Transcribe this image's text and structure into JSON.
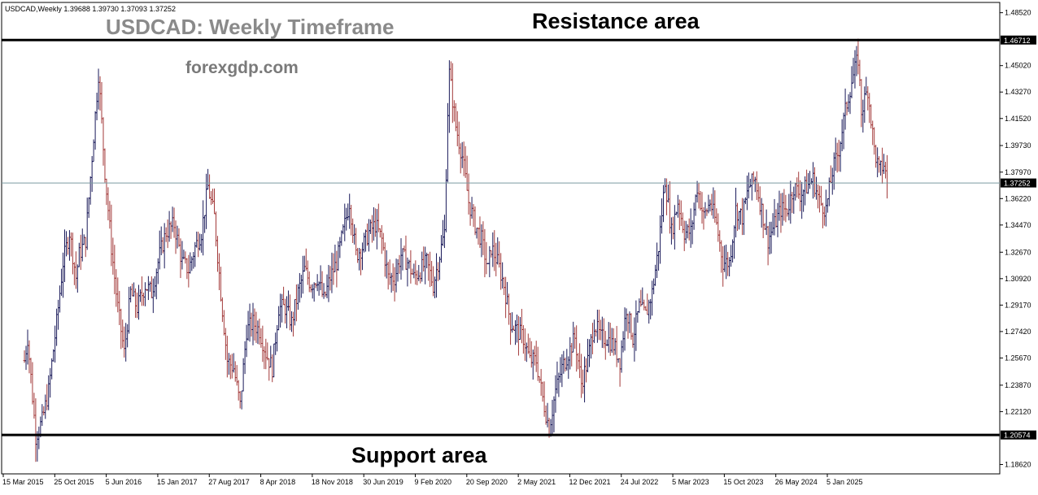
{
  "chart_data": {
    "type": "ohlc",
    "symbol_line": "USDCAD,Weekly  1.39688 1.39730 1.37093 1.37252",
    "title": "USDCAD: Weekly Timeframe",
    "watermark": "forexgdp.com",
    "annotations": {
      "resistance": "Resistance area",
      "support": "Support area"
    },
    "levels": {
      "resistance": {
        "value": 1.46712,
        "label": "1.46712"
      },
      "support": {
        "value": 1.20574,
        "label": "1.20574"
      },
      "current": {
        "value": 1.37252,
        "label": "1.37252"
      }
    },
    "ylim": [
      1.18,
      1.492
    ],
    "y_ticks": [
      {
        "value": 1.4852,
        "label": "1.48520"
      },
      {
        "value": 1.4502,
        "label": "1.45020"
      },
      {
        "value": 1.4327,
        "label": "1.43270"
      },
      {
        "value": 1.4152,
        "label": "1.41520"
      },
      {
        "value": 1.3973,
        "label": "1.39730"
      },
      {
        "value": 1.3797,
        "label": "1.37970"
      },
      {
        "value": 1.3622,
        "label": "1.36220"
      },
      {
        "value": 1.3447,
        "label": "1.34470"
      },
      {
        "value": 1.3267,
        "label": "1.32670"
      },
      {
        "value": 1.3092,
        "label": "1.30920"
      },
      {
        "value": 1.2917,
        "label": "1.29170"
      },
      {
        "value": 1.2742,
        "label": "1.27420"
      },
      {
        "value": 1.2567,
        "label": "1.25670"
      },
      {
        "value": 1.2387,
        "label": "1.23870"
      },
      {
        "value": 1.2212,
        "label": "1.22120"
      },
      {
        "value": 1.1862,
        "label": "1.18620"
      }
    ],
    "x_ticks": [
      {
        "date": "2015-03-15",
        "label": "15 Mar 2015"
      },
      {
        "date": "2015-10-25",
        "label": "25 Oct 2015"
      },
      {
        "date": "2016-06-05",
        "label": "5 Jun 2016"
      },
      {
        "date": "2017-01-15",
        "label": "15 Jan 2017"
      },
      {
        "date": "2017-08-27",
        "label": "27 Aug 2017"
      },
      {
        "date": "2018-04-08",
        "label": "8 Apr 2018"
      },
      {
        "date": "2018-11-18",
        "label": "18 Nov 2018"
      },
      {
        "date": "2019-06-30",
        "label": "30 Jun 2019"
      },
      {
        "date": "2020-02-09",
        "label": "9 Feb 2020"
      },
      {
        "date": "2020-09-20",
        "label": "20 Sep 2020"
      },
      {
        "date": "2021-05-02",
        "label": "2 May 2021"
      },
      {
        "date": "2021-12-12",
        "label": "12 Dec 2021"
      },
      {
        "date": "2022-07-24",
        "label": "24 Jul 2022"
      },
      {
        "date": "2023-03-05",
        "label": "5 Mar 2023"
      },
      {
        "date": "2023-10-15",
        "label": "15 Oct 2023"
      },
      {
        "date": "2024-05-26",
        "label": "26 May 2024"
      },
      {
        "date": "2025-01-05",
        "label": "5 Jan 2025"
      }
    ],
    "price_path": [
      [
        "2015-03-01",
        1.255
      ],
      [
        "2015-03-15",
        1.27
      ],
      [
        "2015-04-19",
        1.205
      ],
      [
        "2015-05-17",
        1.215
      ],
      [
        "2015-06-14",
        1.235
      ],
      [
        "2015-07-19",
        1.28
      ],
      [
        "2015-08-16",
        1.32
      ],
      [
        "2015-09-13",
        1.34
      ],
      [
        "2015-10-11",
        1.31
      ],
      [
        "2015-10-25",
        1.325
      ],
      [
        "2015-11-22",
        1.335
      ],
      [
        "2015-12-20",
        1.39
      ],
      [
        "2016-01-17",
        1.445
      ],
      [
        "2016-02-14",
        1.38
      ],
      [
        "2016-03-13",
        1.33
      ],
      [
        "2016-04-10",
        1.29
      ],
      [
        "2016-05-08",
        1.26
      ],
      [
        "2016-06-05",
        1.3
      ],
      [
        "2016-07-03",
        1.29
      ],
      [
        "2016-08-07",
        1.305
      ],
      [
        "2016-09-04",
        1.3
      ],
      [
        "2016-10-09",
        1.325
      ],
      [
        "2016-11-06",
        1.34
      ],
      [
        "2016-12-11",
        1.345
      ],
      [
        "2017-01-15",
        1.32
      ],
      [
        "2017-02-12",
        1.315
      ],
      [
        "2017-03-12",
        1.33
      ],
      [
        "2017-04-09",
        1.34
      ],
      [
        "2017-05-07",
        1.37
      ],
      [
        "2017-06-04",
        1.35
      ],
      [
        "2017-07-02",
        1.3
      ],
      [
        "2017-07-30",
        1.255
      ],
      [
        "2017-08-27",
        1.25
      ],
      [
        "2017-09-24",
        1.225
      ],
      [
        "2017-10-22",
        1.275
      ],
      [
        "2017-11-19",
        1.28
      ],
      [
        "2017-12-17",
        1.275
      ],
      [
        "2018-01-14",
        1.26
      ],
      [
        "2018-02-11",
        1.25
      ],
      [
        "2018-03-11",
        1.29
      ],
      [
        "2018-04-08",
        1.29
      ],
      [
        "2018-05-06",
        1.28
      ],
      [
        "2018-06-03",
        1.3
      ],
      [
        "2018-07-01",
        1.315
      ],
      [
        "2018-07-29",
        1.305
      ],
      [
        "2018-08-26",
        1.31
      ],
      [
        "2018-09-23",
        1.295
      ],
      [
        "2018-10-21",
        1.31
      ],
      [
        "2018-11-18",
        1.32
      ],
      [
        "2018-12-16",
        1.34
      ],
      [
        "2019-01-13",
        1.36
      ],
      [
        "2019-02-10",
        1.325
      ],
      [
        "2019-03-10",
        1.33
      ],
      [
        "2019-04-07",
        1.34
      ],
      [
        "2019-05-05",
        1.345
      ],
      [
        "2019-06-02",
        1.335
      ],
      [
        "2019-06-30",
        1.31
      ],
      [
        "2019-07-28",
        1.31
      ],
      [
        "2019-08-25",
        1.325
      ],
      [
        "2019-09-22",
        1.32
      ],
      [
        "2019-10-20",
        1.31
      ],
      [
        "2019-11-17",
        1.315
      ],
      [
        "2019-12-15",
        1.32
      ],
      [
        "2020-01-12",
        1.305
      ],
      [
        "2020-02-09",
        1.325
      ],
      [
        "2020-03-01",
        1.34
      ],
      [
        "2020-03-15",
        1.42
      ],
      [
        "2020-03-22",
        1.445
      ],
      [
        "2020-04-19",
        1.41
      ],
      [
        "2020-05-17",
        1.39
      ],
      [
        "2020-06-14",
        1.36
      ],
      [
        "2020-07-12",
        1.345
      ],
      [
        "2020-08-09",
        1.335
      ],
      [
        "2020-09-06",
        1.315
      ],
      [
        "2020-09-20",
        1.33
      ],
      [
        "2020-10-18",
        1.32
      ],
      [
        "2020-11-15",
        1.305
      ],
      [
        "2020-12-13",
        1.28
      ],
      [
        "2021-01-10",
        1.275
      ],
      [
        "2021-02-07",
        1.27
      ],
      [
        "2021-03-07",
        1.255
      ],
      [
        "2021-04-04",
        1.255
      ],
      [
        "2021-05-02",
        1.23
      ],
      [
        "2021-05-30",
        1.21
      ],
      [
        "2021-06-27",
        1.235
      ],
      [
        "2021-07-25",
        1.25
      ],
      [
        "2021-08-22",
        1.26
      ],
      [
        "2021-09-19",
        1.27
      ],
      [
        "2021-10-17",
        1.24
      ],
      [
        "2021-11-14",
        1.255
      ],
      [
        "2021-12-12",
        1.28
      ],
      [
        "2022-01-09",
        1.27
      ],
      [
        "2022-02-06",
        1.27
      ],
      [
        "2022-03-06",
        1.265
      ],
      [
        "2022-04-03",
        1.255
      ],
      [
        "2022-05-01",
        1.29
      ],
      [
        "2022-05-29",
        1.27
      ],
      [
        "2022-06-26",
        1.29
      ],
      [
        "2022-07-24",
        1.285
      ],
      [
        "2022-08-21",
        1.3
      ],
      [
        "2022-09-18",
        1.33
      ],
      [
        "2022-10-16",
        1.375
      ],
      [
        "2022-11-13",
        1.34
      ],
      [
        "2022-12-11",
        1.36
      ],
      [
        "2023-01-08",
        1.34
      ],
      [
        "2023-02-05",
        1.34
      ],
      [
        "2023-03-05",
        1.37
      ],
      [
        "2023-04-02",
        1.35
      ],
      [
        "2023-04-30",
        1.36
      ],
      [
        "2023-05-28",
        1.345
      ],
      [
        "2023-06-25",
        1.32
      ],
      [
        "2023-07-23",
        1.32
      ],
      [
        "2023-08-20",
        1.355
      ],
      [
        "2023-09-17",
        1.35
      ],
      [
        "2023-10-15",
        1.37
      ],
      [
        "2023-11-12",
        1.375
      ],
      [
        "2023-12-10",
        1.355
      ],
      [
        "2024-01-07",
        1.335
      ],
      [
        "2024-02-04",
        1.345
      ],
      [
        "2024-03-03",
        1.355
      ],
      [
        "2024-03-31",
        1.355
      ],
      [
        "2024-04-28",
        1.37
      ],
      [
        "2024-05-26",
        1.365
      ],
      [
        "2024-06-23",
        1.37
      ],
      [
        "2024-07-21",
        1.375
      ],
      [
        "2024-08-18",
        1.36
      ],
      [
        "2024-09-15",
        1.355
      ],
      [
        "2024-10-13",
        1.38
      ],
      [
        "2024-11-10",
        1.395
      ],
      [
        "2024-12-08",
        1.42
      ],
      [
        "2025-01-05",
        1.44
      ],
      [
        "2025-02-02",
        1.455
      ],
      [
        "2025-02-16",
        1.42
      ],
      [
        "2025-03-16",
        1.435
      ],
      [
        "2025-04-13",
        1.395
      ],
      [
        "2025-05-04",
        1.38
      ],
      [
        "2025-05-25",
        1.385
      ],
      [
        "2025-06-08",
        1.37252
      ]
    ],
    "colors": {
      "bar_up": "#1a1a5a",
      "bar_down": "#a33a3a",
      "level_line": "#000000",
      "current_line": "#7a9aa0",
      "axis": "#000000"
    }
  }
}
